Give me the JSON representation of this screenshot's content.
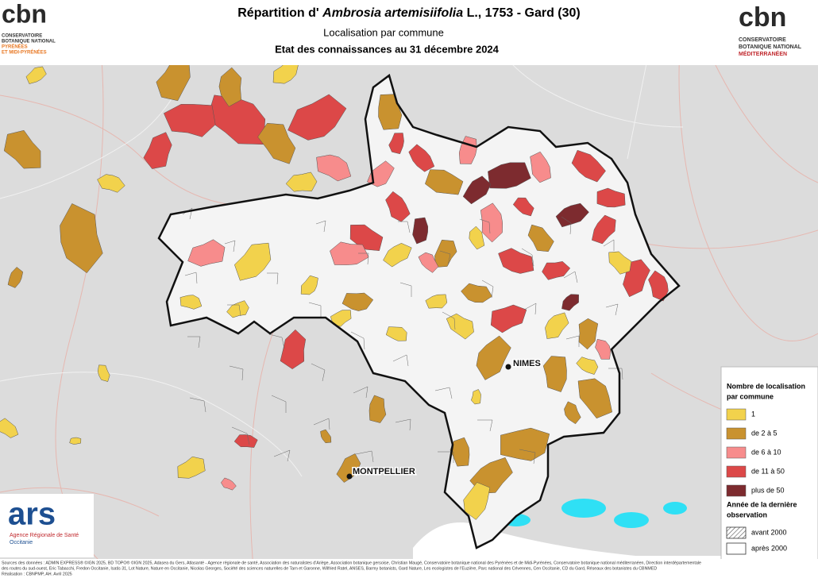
{
  "header": {
    "title_parts": [
      "Répartition d' ",
      "Ambrosia artemisiifolia",
      " L., 1753 - Gard (30)"
    ],
    "subtitle": "Localisation par commune",
    "date_line": "Etat des connaissances au 31 décembre 2024"
  },
  "logos": {
    "left": {
      "mark": "cbn",
      "lines": [
        "CONSERVATOIRE",
        "BOTANIQUE NATIONAL",
        "PYRÉNÉES",
        "ET MIDI-PYRÉNÉES"
      ]
    },
    "right": {
      "mark": "cbn",
      "lines": [
        "CONSERVATOIRE",
        "BOTANIQUE NATIONAL",
        "MÉDITERRANÉEN"
      ]
    },
    "ars": {
      "mark": "ars",
      "lines": [
        "Agence Régionale de Santé",
        "Occitanie"
      ]
    }
  },
  "legend": {
    "title_lines": [
      "Nombre de localisation",
      "par commune"
    ],
    "classes": [
      {
        "label": "1",
        "color": "#f2d24c"
      },
      {
        "label": "de 2 à 5",
        "color": "#c9922f"
      },
      {
        "label": "de 6 à 10",
        "color": "#f78c8c"
      },
      {
        "label": "de 11 à 50",
        "color": "#dc4848"
      },
      {
        "label": "plus de 50",
        "color": "#7d2b2f"
      }
    ],
    "obs_title_lines": [
      "Année de la dernière",
      "observation"
    ],
    "obs": [
      {
        "label": "avant 2000",
        "hatched": true
      },
      {
        "label": "après 2000",
        "hatched": false
      }
    ]
  },
  "places": [
    {
      "label": "NIMES"
    },
    {
      "label": "MONTPELLIER"
    }
  ],
  "sources": [
    "Sources des données : ADMIN EXPRESS® ©IGN 2025, BD TOPO® ©IGN 2025, Adasea du Gers, Atlasanté - Agence régionale de santé, Association des naturalistes d'Ariège, Association botanique gersoise, Christian Maugé, Conservatoire botanique national des Pyrénées et de Midi-Pyrénées, Conservatoire botanique national méditerranéen, Direction interdépartementale",
    "des routes du sud-ouest, Eric Tabacchi, Fredon Occitanie, Isatis 31, Lot Nature, Nature en Occitanie, Nicolas Georges, Société des sciences naturelles de Tarn et Garonne, Wilfried Ratel, ANSES, Barmy botanists, Gard Nature, Les ecologistes de l'Euzière, Parc national des Cévennes, Cen Occitanie, CD du Gard, Réseaux des botanistes du CBNMED",
    "Réalisation : CBNPMP, AH. Avril 2025"
  ]
}
